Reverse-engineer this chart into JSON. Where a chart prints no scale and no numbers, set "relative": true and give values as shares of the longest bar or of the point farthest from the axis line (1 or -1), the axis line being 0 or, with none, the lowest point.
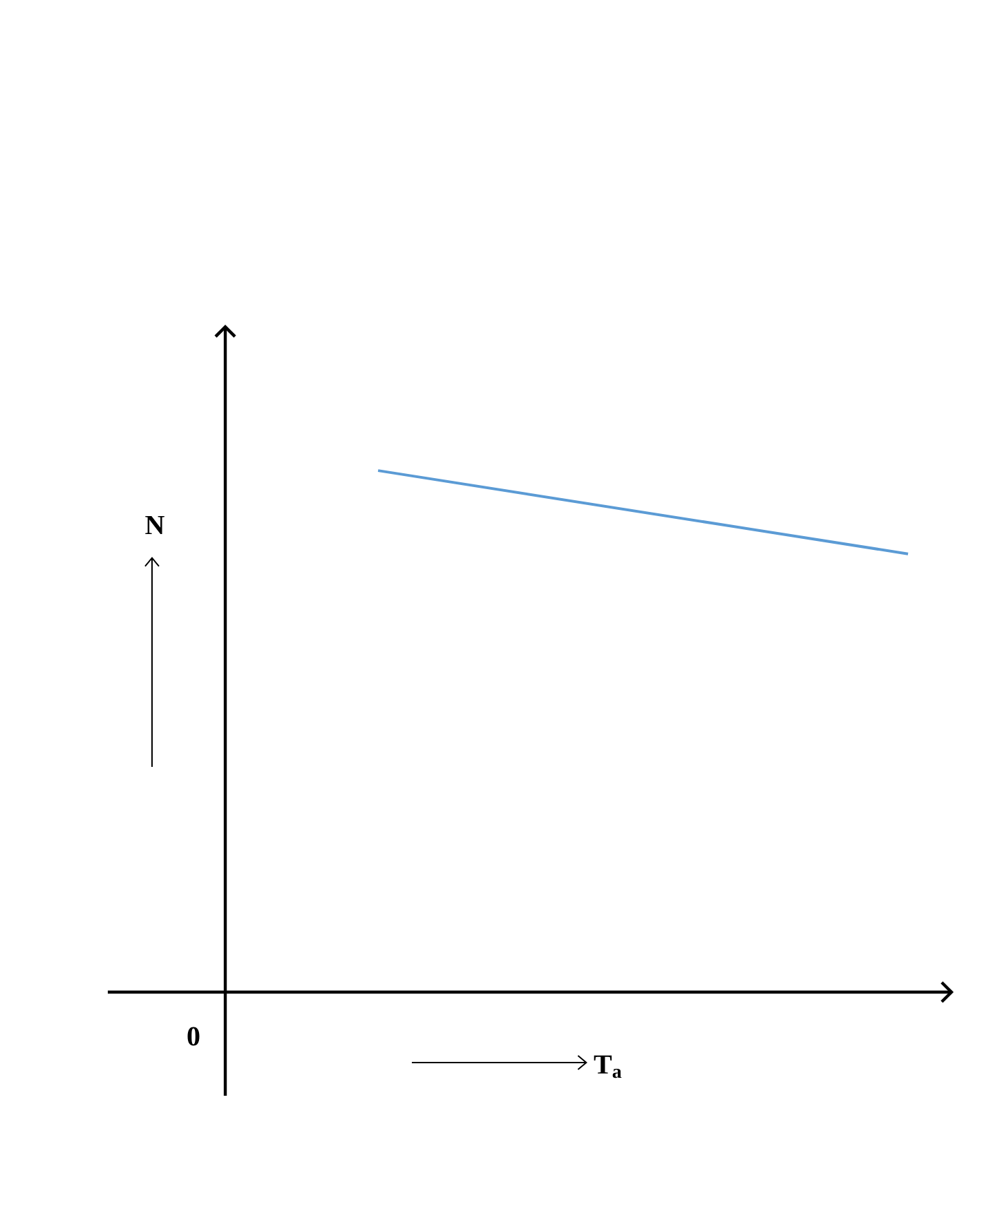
{
  "chart_data": {
    "type": "line",
    "relative": true,
    "categories": [
      null,
      null
    ],
    "values": [
      1,
      0.84
    ],
    "color": "#5b9bd5",
    "xlabel": "T$_{a}$",
    "ylabel": "N",
    "annotations": [
      "0"
    ]
  }
}
